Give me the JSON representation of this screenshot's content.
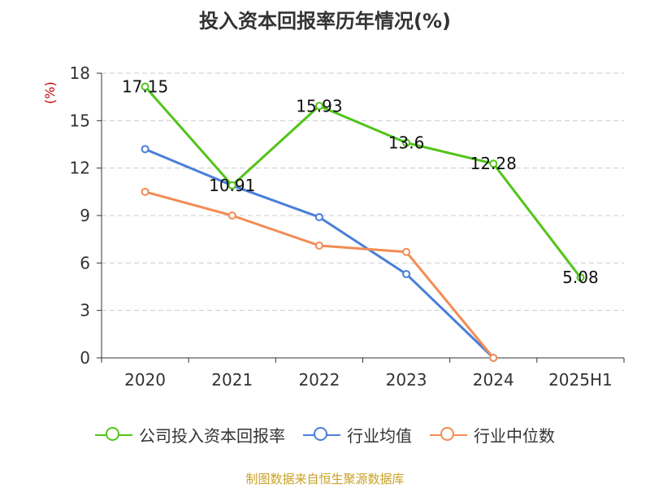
{
  "chart_data": {
    "type": "line",
    "title": "投入资本回报率历年情况(%)",
    "ylabel": "(%)",
    "categories": [
      "2020",
      "2021",
      "2022",
      "2023",
      "2024",
      "2025H1"
    ],
    "ylim": [
      0,
      18
    ],
    "yticks": [
      0,
      3,
      6,
      9,
      12,
      15,
      18
    ],
    "grid": true,
    "legend_position": "bottom",
    "series": [
      {
        "name": "公司投入资本回报率",
        "color": "#52c41a",
        "values": [
          17.15,
          10.91,
          15.93,
          13.6,
          12.28,
          5.08
        ],
        "labels": [
          "17.15",
          "10.91",
          "15.93",
          "13.6",
          "12.28",
          "5.08"
        ]
      },
      {
        "name": "行业均值",
        "color": "#4a7fd8",
        "values": [
          13.2,
          10.9,
          8.9,
          5.3,
          0,
          null
        ]
      },
      {
        "name": "行业中位数",
        "color": "#f28c55",
        "values": [
          10.5,
          9.0,
          7.1,
          6.7,
          0,
          null
        ]
      }
    ]
  },
  "legend": [
    {
      "label": "公司投入资本回报率",
      "color": "#52c41a"
    },
    {
      "label": "行业均值",
      "color": "#4a7fd8"
    },
    {
      "label": "行业中位数",
      "color": "#f28c55"
    }
  ],
  "source": "制图数据来自恒生聚源数据库"
}
